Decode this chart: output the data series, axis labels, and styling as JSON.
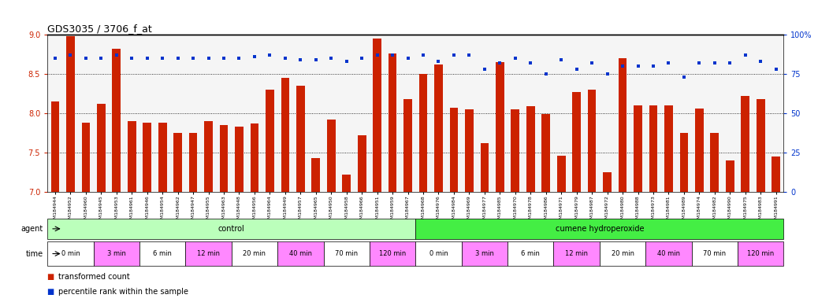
{
  "title": "GDS3035 / 3706_f_at",
  "samples": [
    "GSM184944",
    "GSM184952",
    "GSM184960",
    "GSM184945",
    "GSM184953",
    "GSM184961",
    "GSM184946",
    "GSM184954",
    "GSM184962",
    "GSM184947",
    "GSM184955",
    "GSM184963",
    "GSM184948",
    "GSM184956",
    "GSM184964",
    "GSM184949",
    "GSM184957",
    "GSM184965",
    "GSM184950",
    "GSM184958",
    "GSM184966",
    "GSM184951",
    "GSM184959",
    "GSM184967",
    "GSM184968",
    "GSM184976",
    "GSM184984",
    "GSM184969",
    "GSM184977",
    "GSM184985",
    "GSM184970",
    "GSM184978",
    "GSM184986",
    "GSM184971",
    "GSM184979",
    "GSM184987",
    "GSM184972",
    "GSM184980",
    "GSM184988",
    "GSM184973",
    "GSM184981",
    "GSM184989",
    "GSM184974",
    "GSM184982",
    "GSM184990",
    "GSM184975",
    "GSM184983",
    "GSM184991"
  ],
  "bar_values": [
    8.15,
    8.98,
    7.88,
    8.12,
    8.82,
    7.9,
    7.88,
    7.88,
    7.75,
    7.75,
    7.9,
    7.85,
    7.83,
    7.87,
    8.3,
    8.45,
    8.35,
    7.43,
    7.92,
    7.22,
    7.72,
    8.95,
    8.76,
    8.18,
    8.5,
    8.62,
    8.07,
    8.05,
    7.62,
    8.65,
    8.05,
    8.09,
    7.99,
    7.46,
    8.27,
    8.3,
    7.25,
    8.7,
    8.1,
    8.1,
    8.1,
    7.75,
    8.06,
    7.75,
    7.4,
    8.22,
    8.18,
    7.45
  ],
  "percentile_values": [
    85,
    87,
    85,
    85,
    87,
    85,
    85,
    85,
    85,
    85,
    85,
    85,
    85,
    86,
    87,
    85,
    84,
    84,
    85,
    83,
    85,
    87,
    87,
    85,
    87,
    83,
    87,
    87,
    78,
    82,
    85,
    82,
    75,
    84,
    78,
    82,
    75,
    80,
    80,
    80,
    82,
    73,
    82,
    82,
    82,
    87,
    83,
    78
  ],
  "ylim_left": [
    7.0,
    9.0
  ],
  "ylim_right": [
    0,
    100
  ],
  "yticks_left": [
    7.0,
    7.5,
    8.0,
    8.5,
    9.0
  ],
  "yticks_right": [
    0,
    25,
    50,
    75,
    100
  ],
  "gridlines": [
    7.5,
    8.0,
    8.5
  ],
  "bar_color": "#cc2200",
  "scatter_color": "#0033cc",
  "bg_color": "#ffffff",
  "agent_groups": [
    {
      "label": "control",
      "start": 0,
      "end": 24,
      "color": "#bbffbb"
    },
    {
      "label": "cumene hydroperoxide",
      "start": 24,
      "end": 48,
      "color": "#44ee44"
    }
  ],
  "time_groups": [
    {
      "label": "0 min",
      "indices": [
        0,
        1,
        2
      ],
      "color": "#ffffff"
    },
    {
      "label": "3 min",
      "indices": [
        3,
        4,
        5
      ],
      "color": "#ff88ff"
    },
    {
      "label": "6 min",
      "indices": [
        6,
        7,
        8
      ],
      "color": "#ffffff"
    },
    {
      "label": "12 min",
      "indices": [
        9,
        10,
        11
      ],
      "color": "#ff88ff"
    },
    {
      "label": "20 min",
      "indices": [
        12,
        13,
        14
      ],
      "color": "#ffffff"
    },
    {
      "label": "40 min",
      "indices": [
        15,
        16,
        17
      ],
      "color": "#ff88ff"
    },
    {
      "label": "70 min",
      "indices": [
        18,
        19,
        20
      ],
      "color": "#ffffff"
    },
    {
      "label": "120 min",
      "indices": [
        21,
        22,
        23
      ],
      "color": "#ff88ff"
    },
    {
      "label": "0 min",
      "indices": [
        24,
        25,
        26
      ],
      "color": "#ffffff"
    },
    {
      "label": "3 min",
      "indices": [
        27,
        28,
        29
      ],
      "color": "#ff88ff"
    },
    {
      "label": "6 min",
      "indices": [
        30,
        31,
        32
      ],
      "color": "#ffffff"
    },
    {
      "label": "12 min",
      "indices": [
        33,
        34,
        35
      ],
      "color": "#ff88ff"
    },
    {
      "label": "20 min",
      "indices": [
        36,
        37,
        38
      ],
      "color": "#ffffff"
    },
    {
      "label": "40 min",
      "indices": [
        39,
        40,
        41
      ],
      "color": "#ff88ff"
    },
    {
      "label": "70 min",
      "indices": [
        42,
        43,
        44
      ],
      "color": "#ffffff"
    },
    {
      "label": "120 min",
      "indices": [
        45,
        46,
        47
      ],
      "color": "#ff88ff"
    }
  ],
  "legend_items": [
    {
      "label": "transformed count",
      "color": "#cc2200"
    },
    {
      "label": "percentile rank within the sample",
      "color": "#0033cc"
    }
  ]
}
